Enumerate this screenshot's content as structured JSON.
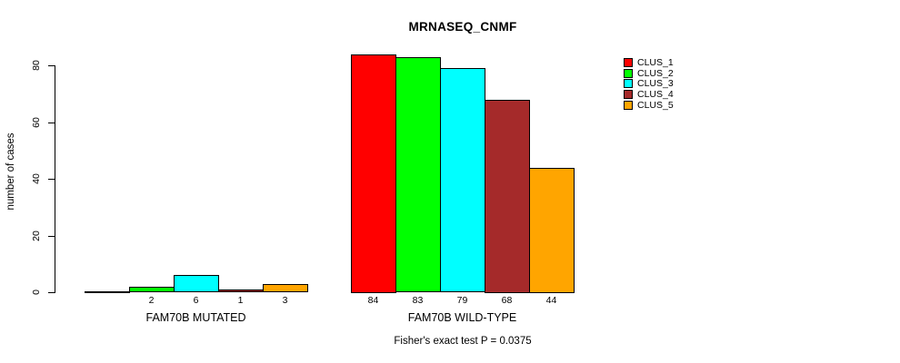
{
  "chart_data": {
    "type": "bar",
    "title": "MRNASEQ_CNMF",
    "ylabel": "number of cases",
    "xlabel": "",
    "footnote": "Fisher's exact test P = 0.0375",
    "ylim": [
      0,
      80
    ],
    "yticks": [
      0,
      20,
      40,
      60,
      80
    ],
    "grid": false,
    "legend_position": "right",
    "series": [
      {
        "name": "CLUS_1",
        "color": "#ff0000"
      },
      {
        "name": "CLUS_2",
        "color": "#00ff00"
      },
      {
        "name": "CLUS_3",
        "color": "#00ffff"
      },
      {
        "name": "CLUS_4",
        "color": "#a52a2a"
      },
      {
        "name": "CLUS_5",
        "color": "#ffa500"
      }
    ],
    "groups": [
      {
        "label": "FAM70B MUTATED",
        "values": [
          0,
          2,
          6,
          1,
          3
        ],
        "bar_labels": [
          "",
          "2",
          "6",
          "1",
          "3"
        ]
      },
      {
        "label": "FAM70B WILD-TYPE",
        "values": [
          84,
          83,
          79,
          68,
          44
        ],
        "bar_labels": [
          "84",
          "83",
          "79",
          "68",
          "44"
        ]
      }
    ]
  }
}
